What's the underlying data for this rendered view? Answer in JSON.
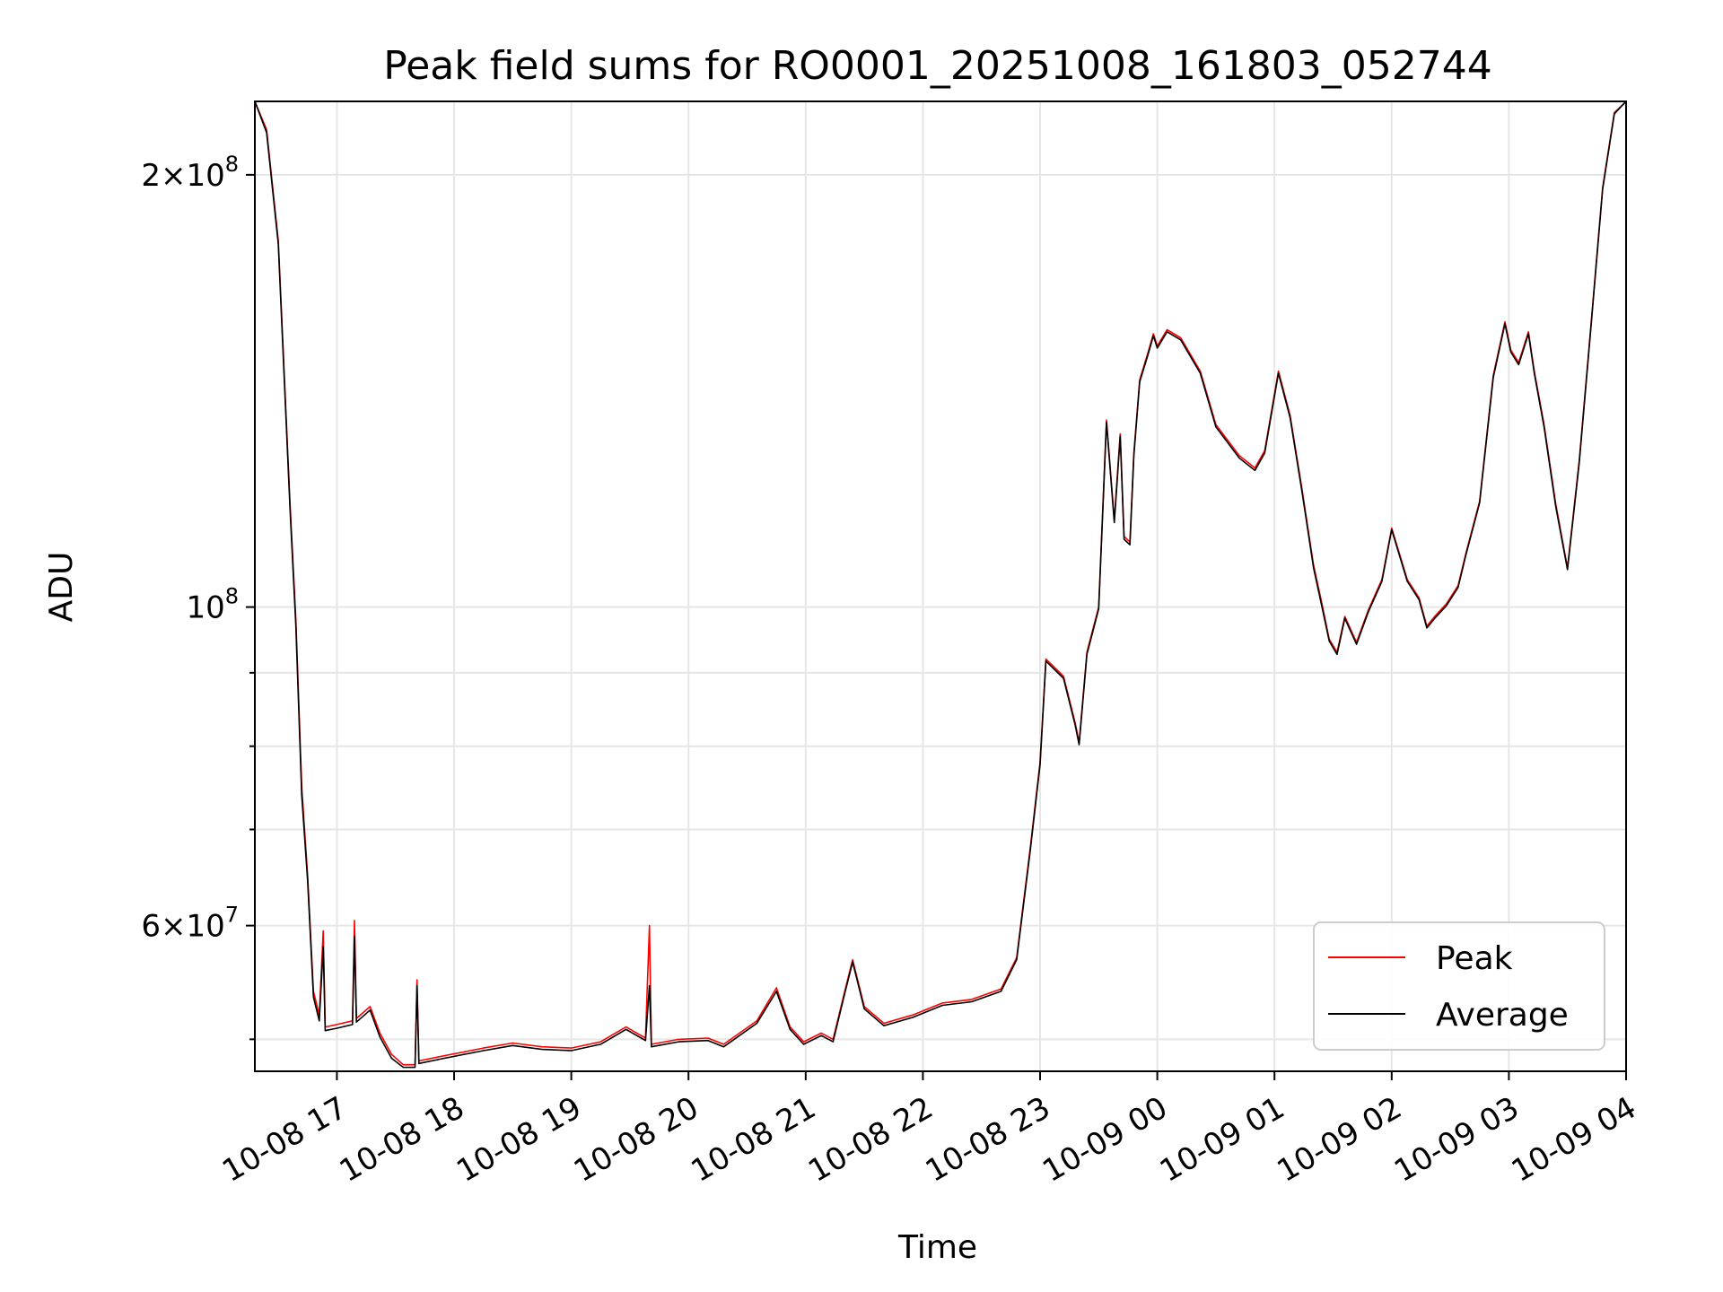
{
  "chart_data": {
    "type": "line",
    "title": "Peak field sums for RO0001_20251008_161803_052744",
    "xlabel": "Time",
    "ylabel": "ADU",
    "yscale": "log",
    "ylim": [
      47500000,
      225000000
    ],
    "grid": true,
    "legend_position": "lower-right",
    "x_ticks": [
      {
        "x": "2025-10-08 17:00",
        "label": "10-08 17"
      },
      {
        "x": "2025-10-08 18:00",
        "label": "10-08 18"
      },
      {
        "x": "2025-10-08 19:00",
        "label": "10-08 19"
      },
      {
        "x": "2025-10-08 20:00",
        "label": "10-08 20"
      },
      {
        "x": "2025-10-08 21:00",
        "label": "10-08 21"
      },
      {
        "x": "2025-10-08 22:00",
        "label": "10-08 22"
      },
      {
        "x": "2025-10-08 23:00",
        "label": "10-08 23"
      },
      {
        "x": "2025-10-09 00:00",
        "label": "10-09 00"
      },
      {
        "x": "2025-10-09 01:00",
        "label": "10-09 01"
      },
      {
        "x": "2025-10-09 02:00",
        "label": "10-09 02"
      },
      {
        "x": "2025-10-09 03:00",
        "label": "10-09 03"
      },
      {
        "x": "2025-10-09 04:00",
        "label": "10-09 04"
      }
    ],
    "xlim": [
      "2025-10-08 16:18",
      "2025-10-09 04:00"
    ],
    "y_major_ticks": [
      {
        "value": 60000000,
        "mantissa": "6",
        "exp": "7"
      },
      {
        "value": 100000000,
        "mantissa": "",
        "exp": "8"
      },
      {
        "value": 200000000,
        "mantissa": "2",
        "exp": "8"
      }
    ],
    "y_minor_ticks": [
      50000000,
      70000000,
      80000000,
      90000000
    ],
    "series": [
      {
        "name": "Peak",
        "color": "#ff0000",
        "points": [
          [
            "2025-10-08 16:18",
            225000000
          ],
          [
            "2025-10-08 16:24",
            215000000
          ],
          [
            "2025-10-08 16:30",
            180000000
          ],
          [
            "2025-10-08 16:36",
            118000000
          ],
          [
            "2025-10-08 16:39",
            98000000
          ],
          [
            "2025-10-08 16:42",
            75000000
          ],
          [
            "2025-10-08 16:45",
            65000000
          ],
          [
            "2025-10-08 16:48",
            54000000
          ],
          [
            "2025-10-08 16:51",
            52000000
          ],
          [
            "2025-10-08 16:53",
            59500000
          ],
          [
            "2025-10-08 16:54",
            51000000
          ],
          [
            "2025-10-08 17:00",
            51200000
          ],
          [
            "2025-10-08 17:08",
            51500000
          ],
          [
            "2025-10-08 17:09",
            60500000
          ],
          [
            "2025-10-08 17:10",
            51700000
          ],
          [
            "2025-10-08 17:17",
            52700000
          ],
          [
            "2025-10-08 17:22",
            50500000
          ],
          [
            "2025-10-08 17:28",
            48800000
          ],
          [
            "2025-10-08 17:34",
            48000000
          ],
          [
            "2025-10-08 17:40",
            48000000
          ],
          [
            "2025-10-08 17:41",
            55000000
          ],
          [
            "2025-10-08 17:42",
            48300000
          ],
          [
            "2025-10-08 17:55",
            48700000
          ],
          [
            "2025-10-08 18:15",
            49300000
          ],
          [
            "2025-10-08 18:30",
            49700000
          ],
          [
            "2025-10-08 18:45",
            49400000
          ],
          [
            "2025-10-08 19:00",
            49300000
          ],
          [
            "2025-10-08 19:15",
            49800000
          ],
          [
            "2025-10-08 19:28",
            51000000
          ],
          [
            "2025-10-08 19:38",
            50100000
          ],
          [
            "2025-10-08 19:40",
            60000000
          ],
          [
            "2025-10-08 19:41",
            49600000
          ],
          [
            "2025-10-08 19:55",
            50000000
          ],
          [
            "2025-10-08 20:10",
            50100000
          ],
          [
            "2025-10-08 20:18",
            49600000
          ],
          [
            "2025-10-08 20:35",
            51500000
          ],
          [
            "2025-10-08 20:45",
            54300000
          ],
          [
            "2025-10-08 20:52",
            51000000
          ],
          [
            "2025-10-08 20:59",
            49800000
          ],
          [
            "2025-10-08 21:08",
            50500000
          ],
          [
            "2025-10-08 21:14",
            50000000
          ],
          [
            "2025-10-08 21:20",
            54000000
          ],
          [
            "2025-10-08 21:24",
            56800000
          ],
          [
            "2025-10-08 21:30",
            52700000
          ],
          [
            "2025-10-08 21:40",
            51300000
          ],
          [
            "2025-10-08 21:55",
            52000000
          ],
          [
            "2025-10-08 22:10",
            53000000
          ],
          [
            "2025-10-08 22:25",
            53300000
          ],
          [
            "2025-10-08 22:40",
            54200000
          ],
          [
            "2025-10-08 22:48",
            57000000
          ],
          [
            "2025-10-08 22:55",
            68000000
          ],
          [
            "2025-10-08 23:00",
            78000000
          ],
          [
            "2025-10-08 23:03",
            92000000
          ],
          [
            "2025-10-08 23:12",
            89500000
          ],
          [
            "2025-10-08 23:18",
            83000000
          ],
          [
            "2025-10-08 23:20",
            80500000
          ],
          [
            "2025-10-08 23:24",
            93000000
          ],
          [
            "2025-10-08 23:30",
            100000000
          ],
          [
            "2025-10-08 23:34",
            135000000
          ],
          [
            "2025-10-08 23:38",
            115000000
          ],
          [
            "2025-10-08 23:41",
            132000000
          ],
          [
            "2025-10-08 23:43",
            112000000
          ],
          [
            "2025-10-08 23:46",
            111000000
          ],
          [
            "2025-10-08 23:48",
            128000000
          ],
          [
            "2025-10-08 23:51",
            144000000
          ],
          [
            "2025-10-08 23:55",
            150000000
          ],
          [
            "2025-10-08 23:58",
            155000000
          ],
          [
            "2025-10-09 00:00",
            152000000
          ],
          [
            "2025-10-09 00:05",
            156000000
          ],
          [
            "2025-10-09 00:12",
            154000000
          ],
          [
            "2025-10-09 00:22",
            146000000
          ],
          [
            "2025-10-09 00:30",
            134000000
          ],
          [
            "2025-10-09 00:42",
            127500000
          ],
          [
            "2025-10-09 00:50",
            125000000
          ],
          [
            "2025-10-09 00:55",
            128500000
          ],
          [
            "2025-10-09 01:02",
            146000000
          ],
          [
            "2025-10-09 01:08",
            136000000
          ],
          [
            "2025-10-09 01:14",
            121000000
          ],
          [
            "2025-10-09 01:20",
            107000000
          ],
          [
            "2025-10-09 01:24",
            101000000
          ],
          [
            "2025-10-09 01:28",
            95000000
          ],
          [
            "2025-10-09 01:32",
            93000000
          ],
          [
            "2025-10-09 01:36",
            98500000
          ],
          [
            "2025-10-09 01:42",
            94500000
          ],
          [
            "2025-10-09 01:48",
            99500000
          ],
          [
            "2025-10-09 01:55",
            104500000
          ],
          [
            "2025-10-09 02:00",
            113500000
          ],
          [
            "2025-10-09 02:08",
            104500000
          ],
          [
            "2025-10-09 02:14",
            101500000
          ],
          [
            "2025-10-09 02:18",
            97000000
          ],
          [
            "2025-10-09 02:22",
            98500000
          ],
          [
            "2025-10-09 02:28",
            100500000
          ],
          [
            "2025-10-09 02:34",
            103500000
          ],
          [
            "2025-10-09 02:38",
            109000000
          ],
          [
            "2025-10-09 02:45",
            118500000
          ],
          [
            "2025-10-09 02:52",
            145000000
          ],
          [
            "2025-10-09 02:58",
            158000000
          ],
          [
            "2025-10-09 03:01",
            151000000
          ],
          [
            "2025-10-09 03:05",
            148000000
          ],
          [
            "2025-10-09 03:10",
            155500000
          ],
          [
            "2025-10-09 03:13",
            146000000
          ],
          [
            "2025-10-09 03:18",
            134000000
          ],
          [
            "2025-10-09 03:24",
            118000000
          ],
          [
            "2025-10-09 03:30",
            106500000
          ],
          [
            "2025-10-09 03:36",
            126500000
          ],
          [
            "2025-10-09 03:42",
            157000000
          ],
          [
            "2025-10-09 03:48",
            196000000
          ],
          [
            "2025-10-09 03:54",
            221000000
          ],
          [
            "2025-10-09 04:00",
            225000000
          ]
        ]
      },
      {
        "name": "Average",
        "color": "#000000",
        "points": [
          [
            "2025-10-08 16:18",
            225000000
          ],
          [
            "2025-10-08 16:24",
            214000000
          ],
          [
            "2025-10-08 16:30",
            179000000
          ],
          [
            "2025-10-08 16:36",
            117000000
          ],
          [
            "2025-10-08 16:39",
            97000000
          ],
          [
            "2025-10-08 16:42",
            74000000
          ],
          [
            "2025-10-08 16:45",
            64500000
          ],
          [
            "2025-10-08 16:48",
            53500000
          ],
          [
            "2025-10-08 16:51",
            51500000
          ],
          [
            "2025-10-08 16:53",
            58000000
          ],
          [
            "2025-10-08 16:54",
            50700000
          ],
          [
            "2025-10-08 17:00",
            50900000
          ],
          [
            "2025-10-08 17:08",
            51200000
          ],
          [
            "2025-10-08 17:09",
            59000000
          ],
          [
            "2025-10-08 17:10",
            51400000
          ],
          [
            "2025-10-08 17:17",
            52400000
          ],
          [
            "2025-10-08 17:22",
            50200000
          ],
          [
            "2025-10-08 17:28",
            48500000
          ],
          [
            "2025-10-08 17:34",
            47800000
          ],
          [
            "2025-10-08 17:40",
            47800000
          ],
          [
            "2025-10-08 17:41",
            54500000
          ],
          [
            "2025-10-08 17:42",
            48100000
          ],
          [
            "2025-10-08 17:55",
            48500000
          ],
          [
            "2025-10-08 18:15",
            49100000
          ],
          [
            "2025-10-08 18:30",
            49500000
          ],
          [
            "2025-10-08 18:45",
            49200000
          ],
          [
            "2025-10-08 19:00",
            49100000
          ],
          [
            "2025-10-08 19:15",
            49600000
          ],
          [
            "2025-10-08 19:28",
            50800000
          ],
          [
            "2025-10-08 19:38",
            49900000
          ],
          [
            "2025-10-08 19:40",
            54500000
          ],
          [
            "2025-10-08 19:41",
            49400000
          ],
          [
            "2025-10-08 19:55",
            49800000
          ],
          [
            "2025-10-08 20:10",
            49900000
          ],
          [
            "2025-10-08 20:18",
            49400000
          ],
          [
            "2025-10-08 20:35",
            51300000
          ],
          [
            "2025-10-08 20:45",
            54000000
          ],
          [
            "2025-10-08 20:52",
            50800000
          ],
          [
            "2025-10-08 20:59",
            49600000
          ],
          [
            "2025-10-08 21:08",
            50300000
          ],
          [
            "2025-10-08 21:14",
            49800000
          ],
          [
            "2025-10-08 21:20",
            53800000
          ],
          [
            "2025-10-08 21:24",
            56600000
          ],
          [
            "2025-10-08 21:30",
            52500000
          ],
          [
            "2025-10-08 21:40",
            51100000
          ],
          [
            "2025-10-08 21:55",
            51800000
          ],
          [
            "2025-10-08 22:10",
            52800000
          ],
          [
            "2025-10-08 22:25",
            53100000
          ],
          [
            "2025-10-08 22:40",
            54000000
          ],
          [
            "2025-10-08 22:48",
            56800000
          ],
          [
            "2025-10-08 22:55",
            67700000
          ],
          [
            "2025-10-08 23:00",
            77700000
          ],
          [
            "2025-10-08 23:03",
            91700000
          ],
          [
            "2025-10-08 23:12",
            89200000
          ],
          [
            "2025-10-08 23:18",
            82700000
          ],
          [
            "2025-10-08 23:20",
            80200000
          ],
          [
            "2025-10-08 23:24",
            92700000
          ],
          [
            "2025-10-08 23:30",
            99700000
          ],
          [
            "2025-10-08 23:34",
            134500000
          ],
          [
            "2025-10-08 23:38",
            114500000
          ],
          [
            "2025-10-08 23:41",
            131500000
          ],
          [
            "2025-10-08 23:43",
            111500000
          ],
          [
            "2025-10-08 23:46",
            110500000
          ],
          [
            "2025-10-08 23:48",
            127500000
          ],
          [
            "2025-10-08 23:51",
            143500000
          ],
          [
            "2025-10-08 23:55",
            149500000
          ],
          [
            "2025-10-08 23:58",
            154500000
          ],
          [
            "2025-10-09 00:00",
            151500000
          ],
          [
            "2025-10-09 00:05",
            155500000
          ],
          [
            "2025-10-09 00:12",
            153500000
          ],
          [
            "2025-10-09 00:22",
            145500000
          ],
          [
            "2025-10-09 00:30",
            133500000
          ],
          [
            "2025-10-09 00:42",
            127000000
          ],
          [
            "2025-10-09 00:50",
            124500000
          ],
          [
            "2025-10-09 00:55",
            128000000
          ],
          [
            "2025-10-09 01:02",
            145500000
          ],
          [
            "2025-10-09 01:08",
            135500000
          ],
          [
            "2025-10-09 01:14",
            120500000
          ],
          [
            "2025-10-09 01:20",
            106500000
          ],
          [
            "2025-10-09 01:24",
            100500000
          ],
          [
            "2025-10-09 01:28",
            94700000
          ],
          [
            "2025-10-09 01:32",
            92700000
          ],
          [
            "2025-10-09 01:36",
            98200000
          ],
          [
            "2025-10-09 01:42",
            94200000
          ],
          [
            "2025-10-09 01:48",
            99200000
          ],
          [
            "2025-10-09 01:55",
            104200000
          ],
          [
            "2025-10-09 02:00",
            113200000
          ],
          [
            "2025-10-09 02:08",
            104200000
          ],
          [
            "2025-10-09 02:14",
            101200000
          ],
          [
            "2025-10-09 02:18",
            96700000
          ],
          [
            "2025-10-09 02:22",
            98200000
          ],
          [
            "2025-10-09 02:28",
            100200000
          ],
          [
            "2025-10-09 02:34",
            103200000
          ],
          [
            "2025-10-09 02:38",
            108700000
          ],
          [
            "2025-10-09 02:45",
            118200000
          ],
          [
            "2025-10-09 02:52",
            144500000
          ],
          [
            "2025-10-09 02:58",
            157500000
          ],
          [
            "2025-10-09 03:01",
            150500000
          ],
          [
            "2025-10-09 03:05",
            147500000
          ],
          [
            "2025-10-09 03:10",
            155000000
          ],
          [
            "2025-10-09 03:13",
            145500000
          ],
          [
            "2025-10-09 03:18",
            133500000
          ],
          [
            "2025-10-09 03:24",
            117500000
          ],
          [
            "2025-10-09 03:30",
            106200000
          ],
          [
            "2025-10-09 03:36",
            126000000
          ],
          [
            "2025-10-09 03:42",
            156500000
          ],
          [
            "2025-10-09 03:48",
            195500000
          ],
          [
            "2025-10-09 03:54",
            220500000
          ],
          [
            "2025-10-09 04:00",
            225000000
          ]
        ]
      }
    ]
  }
}
